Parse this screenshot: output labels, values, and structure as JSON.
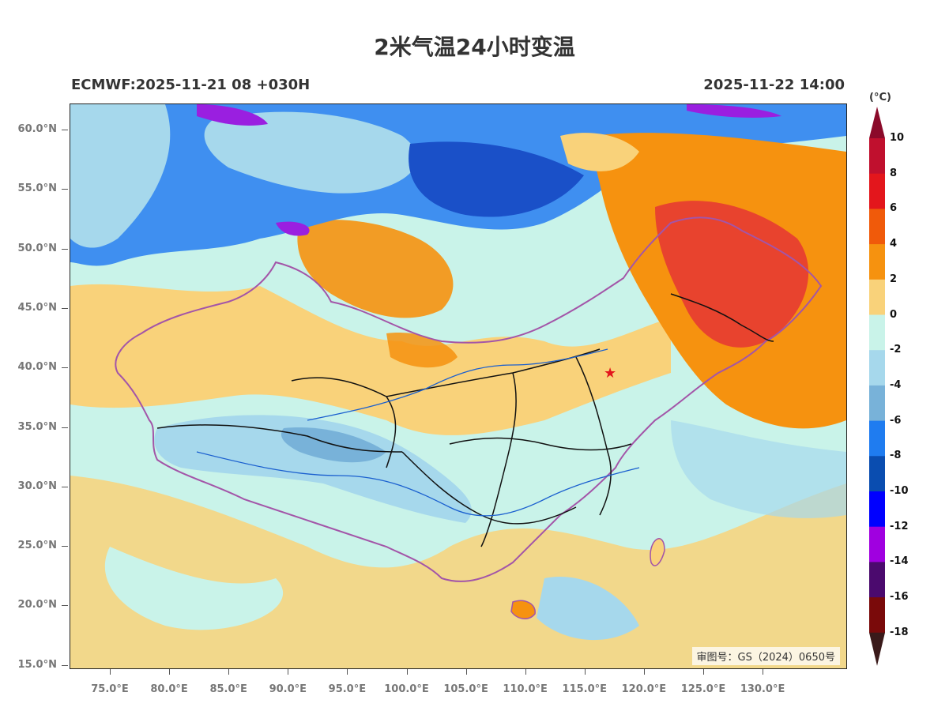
{
  "title": "2米气温24小时变温",
  "model_label": "ECMWF:2025-11-21 08 +030H",
  "valid_time": "2025-11-22 14:00",
  "unit": "(°C)",
  "watermark": "审图号：GS（2024）0650号",
  "lat_ticks": [
    "60.0°N",
    "55.0°N",
    "50.0°N",
    "45.0°N",
    "40.0°N",
    "35.0°N",
    "30.0°N",
    "25.0°N",
    "20.0°N",
    "15.0°N"
  ],
  "lon_ticks": [
    "75.0°E",
    "80.0°E",
    "85.0°E",
    "90.0°E",
    "95.0°E",
    "100.0°E",
    "105.0°E",
    "110.0°E",
    "115.0°E",
    "120.0°E",
    "125.0°E",
    "130.0°E"
  ],
  "colorbar": {
    "labels": [
      "10",
      "8",
      "6",
      "4",
      "2",
      "0",
      "-2",
      "-4",
      "-6",
      "-8",
      "-10",
      "-12",
      "-14",
      "-16",
      "-18"
    ],
    "colors": [
      "#8b0a2a",
      "#c0102e",
      "#e3161c",
      "#f05a0a",
      "#f6920f",
      "#f9d27a",
      "#c9f3e9",
      "#a6d8ec",
      "#78b2d9",
      "#1f7cf0",
      "#0a4db0",
      "#0000ff",
      "#a000e0",
      "#4b0a6e",
      "#7a0a0a",
      "#3a1a1a"
    ]
  },
  "map": {
    "location_marker": "star-icon",
    "palette": {
      "neutral": "#c9f3e9",
      "warm_light": "#f9d27a",
      "warm": "#f6920f",
      "warm_strong": "#e8432e",
      "cool_light": "#a6d8ec",
      "cool": "#3f8ff0",
      "cold": "#1a50c8",
      "very_cold": "#9a1fe0",
      "border_country": "#a355a8",
      "border_province": "#111111",
      "river": "#1a5fcf"
    }
  }
}
